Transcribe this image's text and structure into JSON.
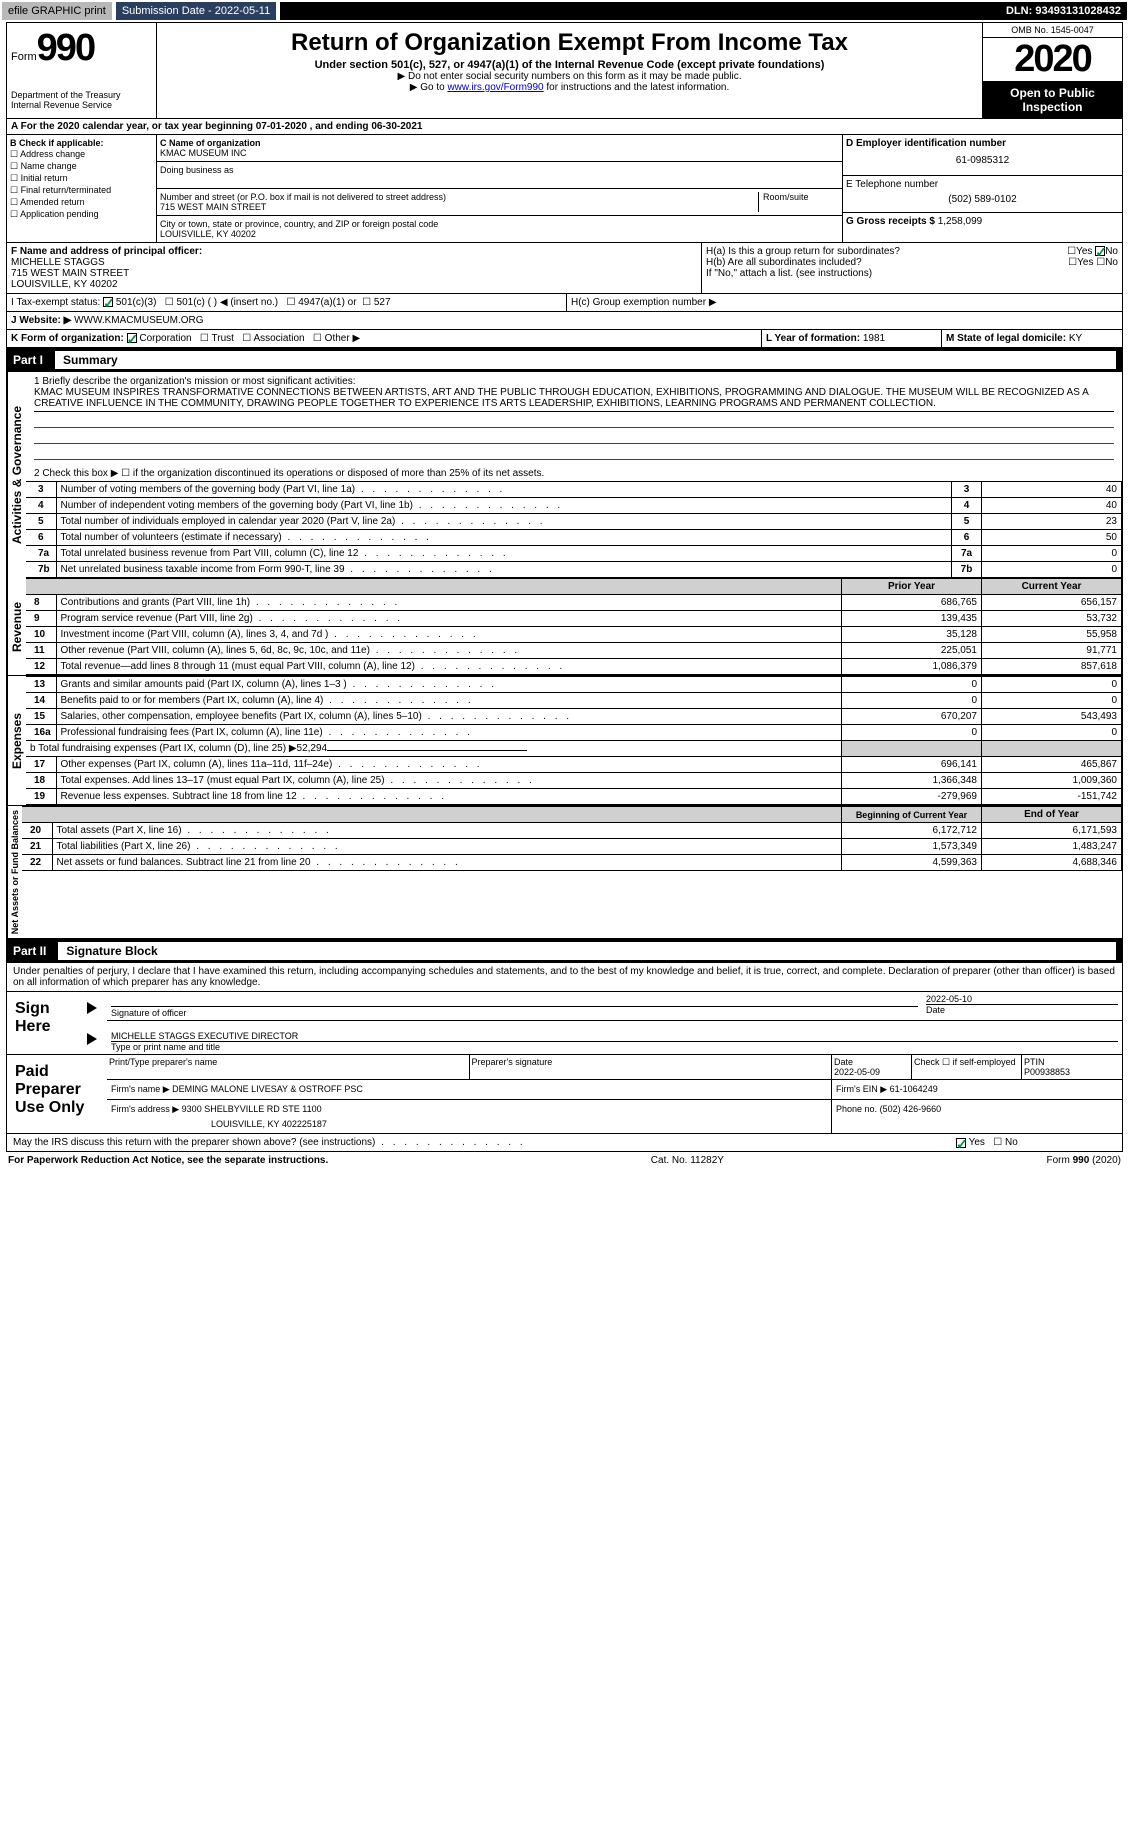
{
  "topbar": {
    "efile": "efile GRAPHIC print",
    "submission": "Submission Date - 2022-05-11",
    "dln": "DLN: 93493131028432"
  },
  "header": {
    "form_label": "Form",
    "form_num": "990",
    "dept": "Department of the Treasury Internal Revenue Service",
    "title": "Return of Organization Exempt From Income Tax",
    "subtitle": "Under section 501(c), 527, or 4947(a)(1) of the Internal Revenue Code (except private foundations)",
    "hint1": "▶ Do not enter social security numbers on this form as it may be made public.",
    "hint2_pre": "▶ Go to ",
    "hint2_link": "www.irs.gov/Form990",
    "hint2_post": " for instructions and the latest information.",
    "omb": "OMB No. 1545-0047",
    "year": "2020",
    "open": "Open to Public Inspection"
  },
  "row_a": "A For the 2020 calendar year, or tax year beginning 07-01-2020     , and ending 06-30-2021",
  "section_b": {
    "label": "B Check if applicable:",
    "opts": [
      "Address change",
      "Name change",
      "Initial return",
      "Final return/terminated",
      "Amended return",
      "Application pending"
    ]
  },
  "section_c": {
    "name_label": "C Name of organization",
    "name": "KMAC MUSEUM INC",
    "dba_label": "Doing business as",
    "addr_label": "Number and street (or P.O. box if mail is not delivered to street address)",
    "room_label": "Room/suite",
    "addr": "715 WEST MAIN STREET",
    "city_label": "City or town, state or province, country, and ZIP or foreign postal code",
    "city": "LOUISVILLE, KY  40202"
  },
  "section_d": {
    "ein_label": "D Employer identification number",
    "ein": "61-0985312",
    "phone_label": "E Telephone number",
    "phone": "(502) 589-0102",
    "gross_label": "G Gross receipts $",
    "gross": "1,258,099"
  },
  "section_f": {
    "label": "F  Name and address of principal officer:",
    "name": "MICHELLE STAGGS",
    "addr": "715 WEST MAIN STREET",
    "city": "LOUISVILLE, KY 40202"
  },
  "section_h": {
    "ha_label": "H(a)  Is this a group return for subordinates?",
    "hb_label": "H(b)  Are all subordinates included?",
    "hb_hint": "If \"No,\" attach a list. (see instructions)",
    "hc_label": "H(c)  Group exemption number ▶"
  },
  "tax_exempt": {
    "label": "I   Tax-exempt status:",
    "opt1": "501(c)(3)",
    "opt2": "501(c) (  ) ◀ (insert no.)",
    "opt3": "4947(a)(1) or",
    "opt4": "527"
  },
  "website": {
    "label": "J   Website: ▶",
    "value": "WWW.KMACMUSEUM.ORG"
  },
  "section_k": {
    "label": "K Form of organization:",
    "opts": [
      "Corporation",
      "Trust",
      "Association",
      "Other ▶"
    ]
  },
  "section_l": {
    "label": "L Year of formation:",
    "value": "1981"
  },
  "section_m": {
    "label": "M State of legal domicile:",
    "value": "KY"
  },
  "part1": {
    "label": "Part I",
    "title": "Summary",
    "line1_label": "1   Briefly describe the organization's mission or most significant activities:",
    "mission": "KMAC MUSEUM INSPIRES TRANSFORMATIVE CONNECTIONS BETWEEN ARTISTS, ART AND THE PUBLIC THROUGH EDUCATION, EXHIBITIONS, PROGRAMMING AND DIALOGUE. THE MUSEUM WILL BE RECOGNIZED AS A CREATIVE INFLUENCE IN THE COMMUNITY, DRAWING PEOPLE TOGETHER TO EXPERIENCE ITS ARTS LEADERSHIP, EXHIBITIONS, LEARNING PROGRAMS AND PERMANENT COLLECTION.",
    "line2": "2    Check this box ▶ ☐  if the organization discontinued its operations or disposed of more than 25% of its net assets.",
    "governance_label": "Activities & Governance",
    "revenue_label": "Revenue",
    "expenses_label": "Expenses",
    "netassets_label": "Net Assets or Fund Balances",
    "prior_year": "Prior Year",
    "current_year": "Current Year",
    "beg_year": "Beginning of Current Year",
    "end_year": "End of Year",
    "rows_gov": [
      {
        "n": "3",
        "label": "Number of voting members of the governing body (Part VI, line 1a)",
        "v": "40"
      },
      {
        "n": "4",
        "label": "Number of independent voting members of the governing body (Part VI, line 1b)",
        "v": "40"
      },
      {
        "n": "5",
        "label": "Total number of individuals employed in calendar year 2020 (Part V, line 2a)",
        "v": "23"
      },
      {
        "n": "6",
        "label": "Total number of volunteers (estimate if necessary)",
        "v": "50"
      },
      {
        "n": "7a",
        "label": "Total unrelated business revenue from Part VIII, column (C), line 12",
        "v": "0"
      },
      {
        "n": "7b",
        "label": "Net unrelated business taxable income from Form 990-T, line 39",
        "v": "0"
      }
    ],
    "rows_rev": [
      {
        "n": "8",
        "label": "Contributions and grants (Part VIII, line 1h)",
        "p": "686,765",
        "c": "656,157"
      },
      {
        "n": "9",
        "label": "Program service revenue (Part VIII, line 2g)",
        "p": "139,435",
        "c": "53,732"
      },
      {
        "n": "10",
        "label": "Investment income (Part VIII, column (A), lines 3, 4, and 7d )",
        "p": "35,128",
        "c": "55,958"
      },
      {
        "n": "11",
        "label": "Other revenue (Part VIII, column (A), lines 5, 6d, 8c, 9c, 10c, and 11e)",
        "p": "225,051",
        "c": "91,771"
      },
      {
        "n": "12",
        "label": "Total revenue—add lines 8 through 11 (must equal Part VIII, column (A), line 12)",
        "p": "1,086,379",
        "c": "857,618"
      }
    ],
    "rows_exp": [
      {
        "n": "13",
        "label": "Grants and similar amounts paid (Part IX, column (A), lines 1–3 )",
        "p": "0",
        "c": "0"
      },
      {
        "n": "14",
        "label": "Benefits paid to or for members (Part IX, column (A), line 4)",
        "p": "0",
        "c": "0"
      },
      {
        "n": "15",
        "label": "Salaries, other compensation, employee benefits (Part IX, column (A), lines 5–10)",
        "p": "670,207",
        "c": "543,493"
      },
      {
        "n": "16a",
        "label": "Professional fundraising fees (Part IX, column (A), line 11e)",
        "p": "0",
        "c": "0"
      }
    ],
    "line16b": "b   Total fundraising expenses (Part IX, column (D), line 25) ▶52,294",
    "rows_exp2": [
      {
        "n": "17",
        "label": "Other expenses (Part IX, column (A), lines 11a–11d, 11f–24e)",
        "p": "696,141",
        "c": "465,867"
      },
      {
        "n": "18",
        "label": "Total expenses. Add lines 13–17 (must equal Part IX, column (A), line 25)",
        "p": "1,366,348",
        "c": "1,009,360"
      },
      {
        "n": "19",
        "label": "Revenue less expenses. Subtract line 18 from line 12",
        "p": "-279,969",
        "c": "-151,742"
      }
    ],
    "rows_net": [
      {
        "n": "20",
        "label": "Total assets (Part X, line 16)",
        "p": "6,172,712",
        "c": "6,171,593"
      },
      {
        "n": "21",
        "label": "Total liabilities (Part X, line 26)",
        "p": "1,573,349",
        "c": "1,483,247"
      },
      {
        "n": "22",
        "label": "Net assets or fund balances. Subtract line 21 from line 20",
        "p": "4,599,363",
        "c": "4,688,346"
      }
    ]
  },
  "part2": {
    "label": "Part II",
    "title": "Signature Block",
    "decl": "Under penalties of perjury, I declare that I have examined this return, including accompanying schedules and statements, and to the best of my knowledge and belief, it is true, correct, and complete. Declaration of preparer (other than officer) is based on all information of which preparer has any knowledge.",
    "sign_here": "Sign Here",
    "sig_officer": "Signature of officer",
    "date": "Date",
    "sig_date": "2022-05-10",
    "officer_name": "MICHELLE STAGGS  EXECUTIVE DIRECTOR",
    "type_name": "Type or print name and title",
    "paid": "Paid Preparer Use Only",
    "prep_name_label": "Print/Type preparer's name",
    "prep_sig_label": "Preparer's signature",
    "prep_date_label": "Date",
    "prep_date": "2022-05-09",
    "check_self": "Check ☐ if self-employed",
    "ptin_label": "PTIN",
    "ptin": "P00938853",
    "firm_name_label": "Firm's name      ▶",
    "firm_name": "DEMING MALONE LIVESAY & OSTROFF PSC",
    "firm_ein_label": "Firm's EIN ▶",
    "firm_ein": "61-1064249",
    "firm_addr_label": "Firm's address ▶",
    "firm_addr": "9300 SHELBYVILLE RD STE 1100",
    "firm_city": "LOUISVILLE, KY  402225187",
    "firm_phone_label": "Phone no.",
    "firm_phone": "(502) 426-9660",
    "discuss": "May the IRS discuss this return with the preparer shown above? (see instructions)"
  },
  "footer": {
    "left": "For Paperwork Reduction Act Notice, see the separate instructions.",
    "mid": "Cat. No. 11282Y",
    "right": "Form 990 (2020)"
  },
  "yes": "Yes",
  "no": "No"
}
